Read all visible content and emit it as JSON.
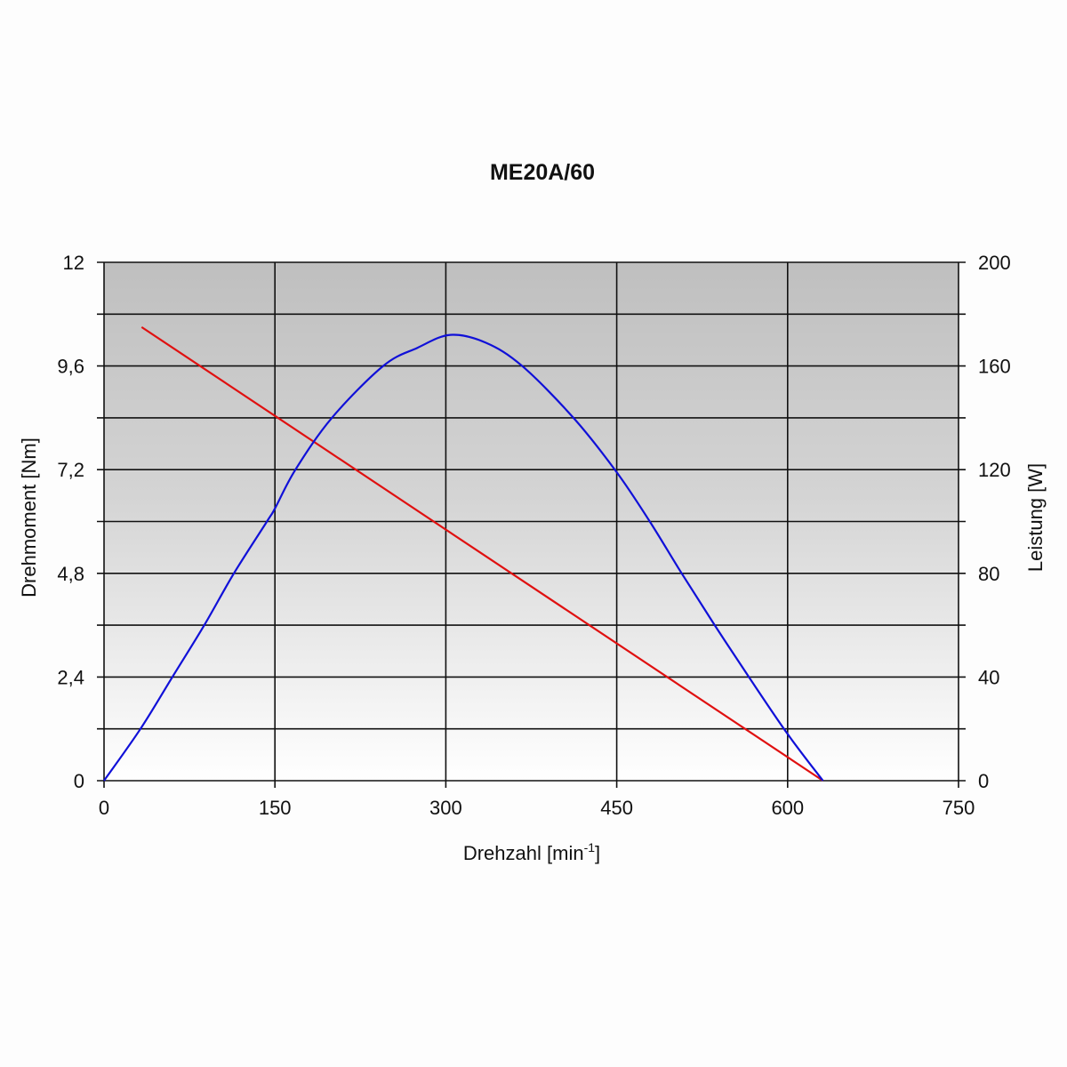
{
  "chart_data": {
    "type": "line",
    "title": "ME20A/60",
    "xlabel": "Drehzahl [min",
    "xlabel_sup": "-1",
    "xlabel_end": "]",
    "ylabel": "Drehmoment [Nm]",
    "y2label": "Leistung [W]",
    "xlim": [
      0,
      750
    ],
    "ylim": [
      0,
      12
    ],
    "y2lim": [
      0,
      200
    ],
    "xticks": [
      "0",
      "150",
      "300",
      "450",
      "600",
      "750"
    ],
    "xtick_values": [
      0,
      150,
      300,
      450,
      600,
      750
    ],
    "yticks": [
      "0",
      "2,4",
      "4,8",
      "7,2",
      "9,6",
      "12"
    ],
    "ytick_values": [
      0,
      2.4,
      4.8,
      7.2,
      9.6,
      12
    ],
    "y2ticks": [
      "0",
      "40",
      "80",
      "120",
      "160",
      "200"
    ],
    "y2tick_values": [
      0,
      40,
      80,
      120,
      160,
      200
    ],
    "grid": true,
    "series": [
      {
        "name": "Drehmoment",
        "axis": "left",
        "color": "#e01010",
        "x": [
          33,
          631
        ],
        "y": [
          10.5,
          0
        ]
      },
      {
        "name": "Leistung",
        "axis": "right",
        "color": "#1010d8",
        "x": [
          0,
          32,
          60,
          88,
          114,
          143,
          150,
          168,
          200,
          245,
          275,
          304,
          335,
          367,
          412,
          450,
          479,
          507,
          536,
          566,
          600,
          631
        ],
        "y": [
          0,
          20,
          40,
          60,
          80,
          100,
          105,
          120,
          140,
          160,
          167,
          172,
          169,
          160,
          140,
          119,
          100,
          80,
          60,
          40,
          18,
          0
        ]
      }
    ]
  }
}
